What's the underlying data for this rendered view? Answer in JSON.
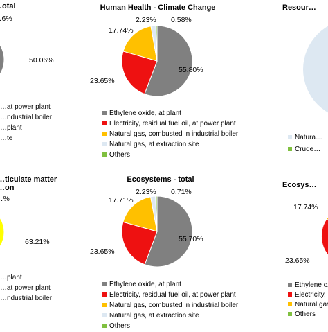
{
  "chart_data": [
    {
      "type": "pie",
      "title": "Human Health - Climate Change",
      "slices": [
        {
          "label": "Ethylene oxide, at plant",
          "value": 55.8,
          "value_label": "55.80%",
          "color": "#808080"
        },
        {
          "label": "Electricity, residual fuel oil, at power plant",
          "value": 23.65,
          "value_label": "23.65%",
          "color": "#ee1111"
        },
        {
          "label": "Natural gas, combusted in industrial boiler",
          "value": 17.74,
          "value_label": "17.74%",
          "color": "#ffc000"
        },
        {
          "label": "Natural gas, at extraction site",
          "value": 2.23,
          "value_label": "2.23%",
          "color": "#dde8f2"
        },
        {
          "label": "Others",
          "value": 0.58,
          "value_label": "0.58%",
          "color": "#80c040"
        }
      ],
      "legend_position": "bottom"
    },
    {
      "type": "pie",
      "title": "Ecosystems - total",
      "slices": [
        {
          "label": "Ethylene oxide, at plant",
          "value": 55.7,
          "value_label": "55.70%",
          "color": "#808080"
        },
        {
          "label": "Electricity, residual fuel oil, at power plant",
          "value": 23.65,
          "value_label": "23.65%",
          "color": "#ee1111"
        },
        {
          "label": "Natural gas, combusted in industrial boiler",
          "value": 17.71,
          "value_label": "17.71%",
          "color": "#ffc000"
        },
        {
          "label": "Natural gas, at extraction site",
          "value": 2.23,
          "value_label": "2.23%",
          "color": "#dde8f2"
        },
        {
          "label": "Others",
          "value": 0.71,
          "value_label": "0.71%",
          "color": "#80c040"
        }
      ],
      "legend_position": "bottom"
    },
    {
      "type": "pie",
      "title": "…otal",
      "slices": [
        {
          "label": "…at power plant",
          "value": 50.06,
          "value_label": "50.06%",
          "color": "#808080"
        }
      ],
      "extra_labels": [
        "…6%"
      ],
      "legend_entries": [
        {
          "label": "…at power plant",
          "color": "#ee1111"
        },
        {
          "label": "…ndustrial boiler",
          "color": "#ffc000"
        },
        {
          "label": "…plant",
          "color": "#dde8f2"
        },
        {
          "label": "…te",
          "color": "#80c040"
        }
      ],
      "partial": true
    },
    {
      "type": "pie",
      "title": "…ticulate matter",
      "subtitle": "…on",
      "slices": [
        {
          "label": "",
          "value": 63.21,
          "value_label": "63.21%",
          "color": "#ffff00"
        }
      ],
      "extra_labels": [
        "…%"
      ],
      "legend_entries": [
        {
          "label": "…plant",
          "color": "#808080"
        },
        {
          "label": "…at power plant",
          "color": "#ee1111"
        },
        {
          "label": "…ndustrial boiler",
          "color": "#ffc000"
        }
      ],
      "partial": true
    },
    {
      "type": "pie",
      "title": "Resour…",
      "slices": [
        {
          "label": "Natura…",
          "value": 100,
          "color": "#dde8f2"
        }
      ],
      "legend_entries": [
        {
          "label": "Natura…",
          "color": "#dde8f2"
        },
        {
          "label": "Crude…",
          "color": "#80c040"
        }
      ],
      "partial": true
    },
    {
      "type": "pie",
      "title": "Ecosys…",
      "slices": [
        {
          "label": "",
          "value": 17.74,
          "value_label": "17.74%",
          "color": "#ffc000"
        },
        {
          "label": "",
          "value": 23.65,
          "value_label": "23.65%",
          "color": "#ee1111"
        }
      ],
      "legend_entries": [
        {
          "label": "Ethylene oxide…",
          "color": "#808080"
        },
        {
          "label": "Electricity, resid…",
          "color": "#ee1111"
        },
        {
          "label": "Natural gas…",
          "color": "#ffc000"
        },
        {
          "label": "Others",
          "color": "#80c040"
        }
      ],
      "partial": true
    }
  ]
}
